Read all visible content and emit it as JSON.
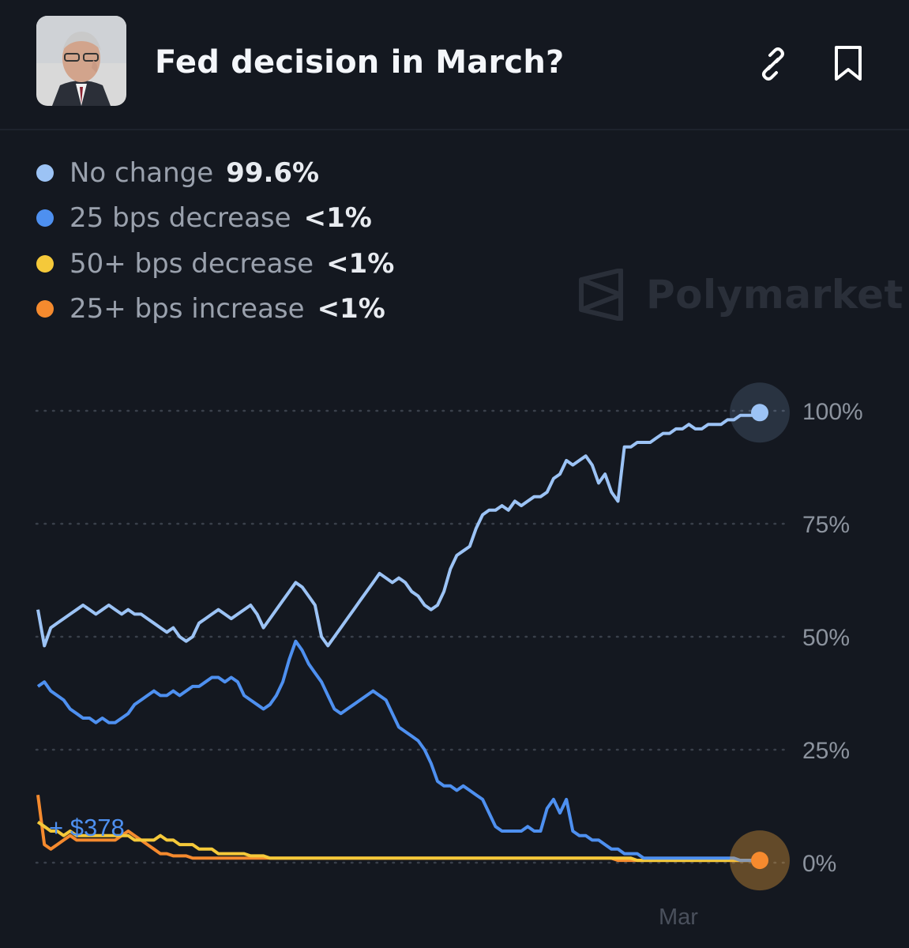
{
  "header": {
    "title": "Fed decision in March?",
    "link_icon": "link-icon",
    "bookmark_icon": "bookmark-icon"
  },
  "watermark": {
    "text": "Polymarket"
  },
  "chart_data": {
    "type": "line",
    "title": "",
    "x_tick_labels": [
      "Mar"
    ],
    "y_ticks": [
      0,
      25,
      50,
      75,
      100
    ],
    "y_tick_labels": [
      "0%",
      "25%",
      "50%",
      "75%",
      "100%"
    ],
    "ylim": [
      0,
      100
    ],
    "grid": "horizontal dotted",
    "legend_position": "top-left",
    "annotation": "+ $378",
    "series": [
      {
        "name": "No change",
        "value_label": "99.6%",
        "color": "#9cc3f5",
        "values": [
          56,
          48,
          52,
          53,
          54,
          55,
          56,
          57,
          56,
          55,
          56,
          57,
          56,
          55,
          56,
          55,
          55,
          54,
          53,
          52,
          51,
          52,
          50,
          49,
          50,
          53,
          54,
          55,
          56,
          55,
          54,
          55,
          56,
          57,
          55,
          52,
          54,
          56,
          58,
          60,
          62,
          61,
          59,
          57,
          50,
          48,
          50,
          52,
          54,
          56,
          58,
          60,
          62,
          64,
          63,
          62,
          63,
          62,
          60,
          59,
          57,
          56,
          57,
          60,
          65,
          68,
          69,
          70,
          74,
          77,
          78,
          78,
          79,
          78,
          80,
          79,
          80,
          81,
          81,
          82,
          85,
          86,
          89,
          88,
          89,
          90,
          88,
          84,
          86,
          82,
          80,
          92,
          92,
          93,
          93,
          93,
          94,
          95,
          95,
          96,
          96,
          97,
          96,
          96,
          97,
          97,
          97,
          98,
          98,
          99,
          99,
          99,
          99.6
        ]
      },
      {
        "name": "25 bps decrease",
        "value_label": "<1%",
        "color": "#4e90f0",
        "values": [
          39,
          40,
          38,
          37,
          36,
          34,
          33,
          32,
          32,
          31,
          32,
          31,
          31,
          32,
          33,
          35,
          36,
          37,
          38,
          37,
          37,
          38,
          37,
          38,
          39,
          39,
          40,
          41,
          41,
          40,
          41,
          40,
          37,
          36,
          35,
          34,
          35,
          37,
          40,
          45,
          49,
          47,
          44,
          42,
          40,
          37,
          34,
          33,
          34,
          35,
          36,
          37,
          38,
          37,
          36,
          33,
          30,
          29,
          28,
          27,
          25,
          22,
          18,
          17,
          17,
          16,
          17,
          16,
          15,
          14,
          11,
          8,
          7,
          7,
          7,
          7,
          8,
          7,
          7,
          12,
          14,
          11,
          14,
          7,
          6,
          6,
          5,
          5,
          4,
          3,
          3,
          2,
          2,
          2,
          1,
          1,
          1,
          1,
          1,
          1,
          1,
          1,
          1,
          1,
          1,
          1,
          1,
          1,
          1,
          0.5,
          0.5,
          0.5,
          0.4
        ]
      },
      {
        "name": "50+ bps decrease",
        "value_label": "<1%",
        "color": "#f5c93a",
        "values": [
          9,
          8,
          7,
          7,
          6,
          7,
          6,
          6,
          6,
          6,
          6,
          6,
          6,
          6,
          6,
          5,
          5,
          5,
          5,
          6,
          5,
          5,
          4,
          4,
          4,
          3,
          3,
          3,
          2,
          2,
          2,
          2,
          2,
          1.5,
          1.5,
          1.5,
          1,
          1,
          1,
          1,
          1,
          1,
          1,
          1,
          1,
          1,
          1,
          1,
          1,
          1,
          1,
          1,
          1,
          1,
          1,
          1,
          1,
          1,
          1,
          1,
          1,
          1,
          1,
          1,
          1,
          1,
          1,
          1,
          1,
          1,
          1,
          1,
          1,
          1,
          1,
          1,
          1,
          1,
          1,
          1,
          1,
          1,
          1,
          1,
          1,
          1,
          1,
          1,
          1,
          1,
          1,
          1,
          1,
          0.5,
          0.5,
          0.5,
          0.5,
          0.5,
          0.5,
          0.5,
          0.5,
          0.5,
          0.5,
          0.5,
          0.5,
          0.5,
          0.5,
          0.5,
          0.5,
          0.5,
          0.5,
          0.5,
          0.5
        ]
      },
      {
        "name": "25+ bps increase",
        "value_label": "<1%",
        "color": "#f58a2e",
        "values": [
          15,
          4,
          3,
          4,
          5,
          6,
          5,
          5,
          5,
          5,
          5,
          5,
          5,
          6,
          7,
          6,
          5,
          4,
          3,
          2,
          2,
          1.5,
          1.5,
          1.5,
          1,
          1,
          1,
          1,
          1,
          1,
          1,
          1,
          1,
          1,
          1,
          1,
          1,
          1,
          1,
          1,
          1,
          1,
          1,
          1,
          1,
          1,
          1,
          1,
          1,
          1,
          1,
          1,
          1,
          1,
          1,
          1,
          1,
          1,
          1,
          1,
          1,
          1,
          1,
          1,
          1,
          1,
          1,
          1,
          1,
          1,
          1,
          1,
          1,
          1,
          1,
          1,
          1,
          1,
          1,
          1,
          1,
          1,
          1,
          1,
          1,
          1,
          1,
          1,
          1,
          1,
          0.5,
          0.5,
          0.5,
          0.5,
          0.5,
          0.5,
          0.5,
          0.5,
          0.5,
          0.5,
          0.5,
          0.5,
          0.5,
          0.5,
          0.5,
          0.5,
          0.5,
          0.5,
          0.5,
          0.5,
          0.5,
          0.5,
          0.5
        ]
      }
    ]
  }
}
